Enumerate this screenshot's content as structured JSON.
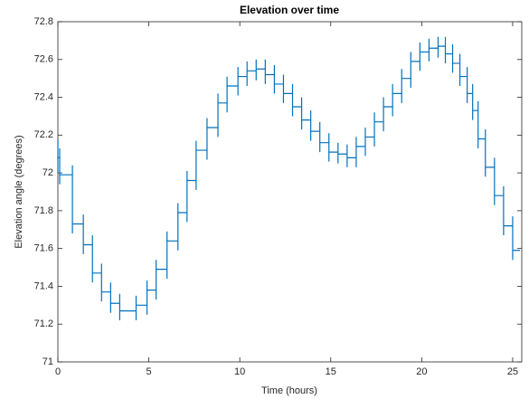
{
  "chart_data": {
    "type": "line",
    "title": "Elevation over time",
    "x_label": "Time (hours)",
    "y_label": "Elevation angle (degrees)",
    "xlim": [
      0,
      25.5
    ],
    "xticks": [
      0,
      5,
      10,
      15,
      20,
      25
    ],
    "ylim": [
      71,
      72.8
    ],
    "yticks": [
      71,
      71.2,
      71.4,
      71.6,
      71.8,
      72,
      72.2,
      72.4,
      72.6,
      72.8
    ],
    "grid": false,
    "series": [
      {
        "color": "#0072bd",
        "x": [
          0,
          0,
          0,
          0.1,
          0.1,
          0.1,
          0.1,
          0.8,
          0.8,
          0.8,
          0.8,
          1.4,
          1.4,
          1.4,
          1.4,
          1.9,
          1.9,
          1.9,
          1.9,
          2.4,
          2.4,
          2.4,
          2.4,
          2.9,
          2.9,
          2.9,
          2.9,
          3.4,
          3.4,
          3.4,
          3.4,
          4.3,
          4.3,
          4.3,
          4.3,
          4.9,
          4.9,
          4.9,
          4.9,
          5.4,
          5.4,
          5.4,
          5.4,
          6,
          6,
          6,
          6,
          6.6,
          6.6,
          6.6,
          6.6,
          7.1,
          7.1,
          7.1,
          7.1,
          7.6,
          7.6,
          7.6,
          7.6,
          8.2,
          8.2,
          8.2,
          8.2,
          8.8,
          8.8,
          8.8,
          8.8,
          9.3,
          9.3,
          9.3,
          9.3,
          9.9,
          9.9,
          9.9,
          9.9,
          10.4,
          10.4,
          10.4,
          10.4,
          10.9,
          10.9,
          10.9,
          10.9,
          11.4,
          11.4,
          11.4,
          11.4,
          11.9,
          11.9,
          11.9,
          11.9,
          12.4,
          12.4,
          12.4,
          12.4,
          12.9,
          12.9,
          12.9,
          12.9,
          13.4,
          13.4,
          13.4,
          13.4,
          13.9,
          13.9,
          13.9,
          13.9,
          14.4,
          14.4,
          14.4,
          14.4,
          14.9,
          14.9,
          14.9,
          14.9,
          15.4,
          15.4,
          15.4,
          15.4,
          15.9,
          15.9,
          15.9,
          15.9,
          16.4,
          16.4,
          16.4,
          16.4,
          16.9,
          16.9,
          16.9,
          16.9,
          17.4,
          17.4,
          17.4,
          17.4,
          17.9,
          17.9,
          17.9,
          17.9,
          18.4,
          18.4,
          18.4,
          18.4,
          18.9,
          18.9,
          18.9,
          18.9,
          19.4,
          19.4,
          19.4,
          19.4,
          19.9,
          19.9,
          19.9,
          19.9,
          20.4,
          20.4,
          20.4,
          20.4,
          20.9,
          20.9,
          20.9,
          20.9,
          21.3,
          21.3,
          21.3,
          21.3,
          21.7,
          21.7,
          21.7,
          21.7,
          22.1,
          22.1,
          22.1,
          22.1,
          22.5,
          22.5,
          22.5,
          22.5,
          22.8,
          22.8,
          22.8,
          22.8,
          23.1,
          23.1,
          23.1,
          23.1,
          23.5,
          23.5,
          23.5,
          23.5,
          24,
          24,
          24,
          24,
          24.5,
          24.5,
          24.5,
          24.5,
          25,
          25,
          25,
          25,
          25.4
        ],
        "values": [
          72.18,
          72.0,
          72.08,
          72.08,
          72.13,
          71.94,
          71.99,
          71.99,
          72.04,
          71.68,
          71.73,
          71.73,
          71.78,
          71.57,
          71.62,
          71.62,
          71.67,
          71.42,
          71.47,
          71.47,
          71.52,
          71.32,
          71.37,
          71.37,
          71.42,
          71.26,
          71.31,
          71.31,
          71.36,
          71.22,
          71.27,
          71.27,
          71.35,
          71.22,
          71.3,
          71.3,
          71.43,
          71.25,
          71.38,
          71.38,
          71.54,
          71.33,
          71.49,
          71.49,
          71.69,
          71.44,
          71.64,
          71.64,
          71.84,
          71.59,
          71.79,
          71.79,
          72.01,
          71.74,
          71.96,
          71.96,
          72.17,
          71.91,
          72.12,
          72.12,
          72.29,
          72.07,
          72.24,
          72.24,
          72.42,
          72.19,
          72.37,
          72.37,
          72.51,
          72.32,
          72.46,
          72.46,
          72.56,
          72.41,
          72.51,
          72.51,
          72.59,
          72.46,
          72.54,
          72.54,
          72.6,
          72.49,
          72.55,
          72.55,
          72.6,
          72.47,
          72.52,
          72.52,
          72.57,
          72.42,
          72.47,
          72.47,
          72.52,
          72.37,
          72.42,
          72.42,
          72.47,
          72.3,
          72.35,
          72.35,
          72.4,
          72.23,
          72.28,
          72.28,
          72.33,
          72.17,
          72.22,
          72.22,
          72.27,
          72.11,
          72.16,
          72.16,
          72.21,
          72.06,
          72.11,
          72.11,
          72.16,
          72.05,
          72.1,
          72.1,
          72.15,
          72.03,
          72.08,
          72.08,
          72.19,
          72.03,
          72.14,
          72.14,
          72.24,
          72.09,
          72.19,
          72.19,
          72.32,
          72.14,
          72.27,
          72.27,
          72.4,
          72.22,
          72.35,
          72.35,
          72.47,
          72.3,
          72.42,
          72.42,
          72.55,
          72.37,
          72.5,
          72.5,
          72.64,
          72.45,
          72.59,
          72.59,
          72.69,
          72.54,
          72.64,
          72.64,
          72.71,
          72.59,
          72.66,
          72.66,
          72.72,
          72.61,
          72.67,
          72.67,
          72.72,
          72.58,
          72.63,
          72.63,
          72.68,
          72.53,
          72.58,
          72.58,
          72.63,
          72.46,
          72.51,
          72.51,
          72.56,
          72.37,
          72.42,
          72.42,
          72.47,
          72.28,
          72.33,
          72.33,
          72.38,
          72.13,
          72.18,
          72.18,
          72.23,
          71.98,
          72.03,
          72.03,
          72.08,
          71.83,
          71.88,
          71.88,
          71.93,
          71.67,
          71.72,
          71.72,
          71.77,
          71.54,
          71.59,
          71.59
        ]
      }
    ]
  }
}
